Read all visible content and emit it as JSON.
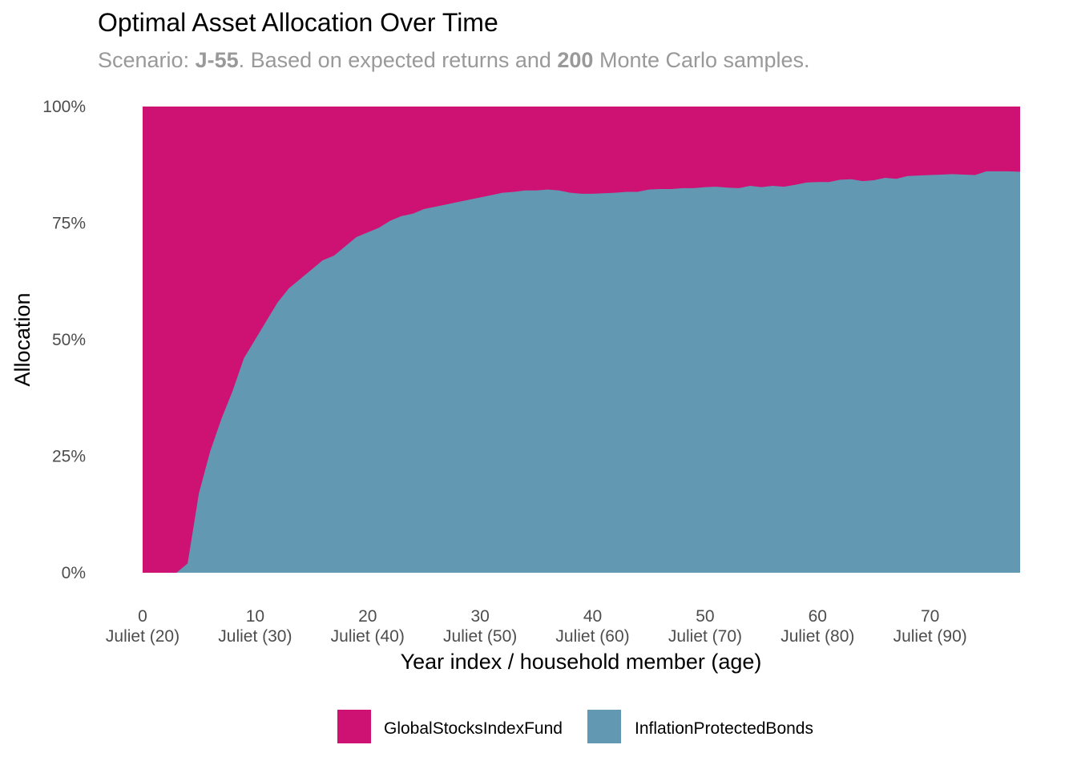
{
  "title": "Optimal Asset Allocation Over Time",
  "subtitle": {
    "prefix": "Scenario: ",
    "scenario": "J-55",
    "mid": ". Based on expected returns and ",
    "samples": "200",
    "suffix": " Monte Carlo samples."
  },
  "chart_data": {
    "type": "area",
    "stacked": true,
    "xlabel": "Year index / household member (age)",
    "ylabel": "Allocation",
    "xlim": [
      0,
      78
    ],
    "ylim": [
      0,
      100
    ],
    "y_ticks": [
      "0%",
      "25%",
      "50%",
      "75%",
      "100%"
    ],
    "y_tick_values": [
      0,
      25,
      50,
      75,
      100
    ],
    "x_ticks": [
      {
        "value": 0,
        "label": "0",
        "sublabel": "Juliet (20)"
      },
      {
        "value": 10,
        "label": "10",
        "sublabel": "Juliet (30)"
      },
      {
        "value": 20,
        "label": "20",
        "sublabel": "Juliet (40)"
      },
      {
        "value": 30,
        "label": "30",
        "sublabel": "Juliet (50)"
      },
      {
        "value": 40,
        "label": "40",
        "sublabel": "Juliet (60)"
      },
      {
        "value": 50,
        "label": "50",
        "sublabel": "Juliet (70)"
      },
      {
        "value": 60,
        "label": "60",
        "sublabel": "Juliet (80)"
      },
      {
        "value": 70,
        "label": "70",
        "sublabel": "Juliet (90)"
      }
    ],
    "legend_position": "bottom",
    "series": [
      {
        "name": "GlobalStocksIndexFund",
        "color": "#CE1273",
        "role": "remainder to 100%"
      },
      {
        "name": "InflationProtectedBonds",
        "color": "#6398B3",
        "x": [
          0,
          1,
          2,
          3,
          4,
          5,
          6,
          7,
          8,
          9,
          10,
          11,
          12,
          13,
          14,
          15,
          16,
          17,
          18,
          19,
          20,
          21,
          22,
          23,
          24,
          25,
          26,
          27,
          28,
          29,
          30,
          31,
          32,
          33,
          34,
          35,
          36,
          37,
          38,
          39,
          40,
          41,
          42,
          43,
          44,
          45,
          46,
          47,
          48,
          49,
          50,
          51,
          52,
          53,
          54,
          55,
          56,
          57,
          58,
          59,
          60,
          61,
          62,
          63,
          64,
          65,
          66,
          67,
          68,
          69,
          70,
          71,
          72,
          73,
          74,
          75,
          76,
          77,
          78
        ],
        "values": [
          0,
          0,
          0,
          0,
          2,
          17,
          26,
          33,
          39,
          46,
          50,
          54,
          58,
          61,
          63,
          65,
          67,
          68,
          70,
          72,
          73,
          74,
          75.5,
          76.5,
          77,
          78,
          78.5,
          79,
          79.5,
          80,
          80.5,
          81,
          81.5,
          81.7,
          82,
          82,
          82.2,
          82,
          81.5,
          81.3,
          81.3,
          81.4,
          81.5,
          81.7,
          81.7,
          82.2,
          82.3,
          82.3,
          82.5,
          82.5,
          82.7,
          82.8,
          82.6,
          82.5,
          83,
          82.7,
          83,
          82.8,
          83.2,
          83.7,
          83.8,
          83.8,
          84.3,
          84.4,
          84,
          84.2,
          84.7,
          84.5,
          85.1,
          85.2,
          85.3,
          85.4,
          85.5,
          85.4,
          85.3,
          86.1,
          86.1,
          86.1,
          86
        ]
      }
    ]
  }
}
